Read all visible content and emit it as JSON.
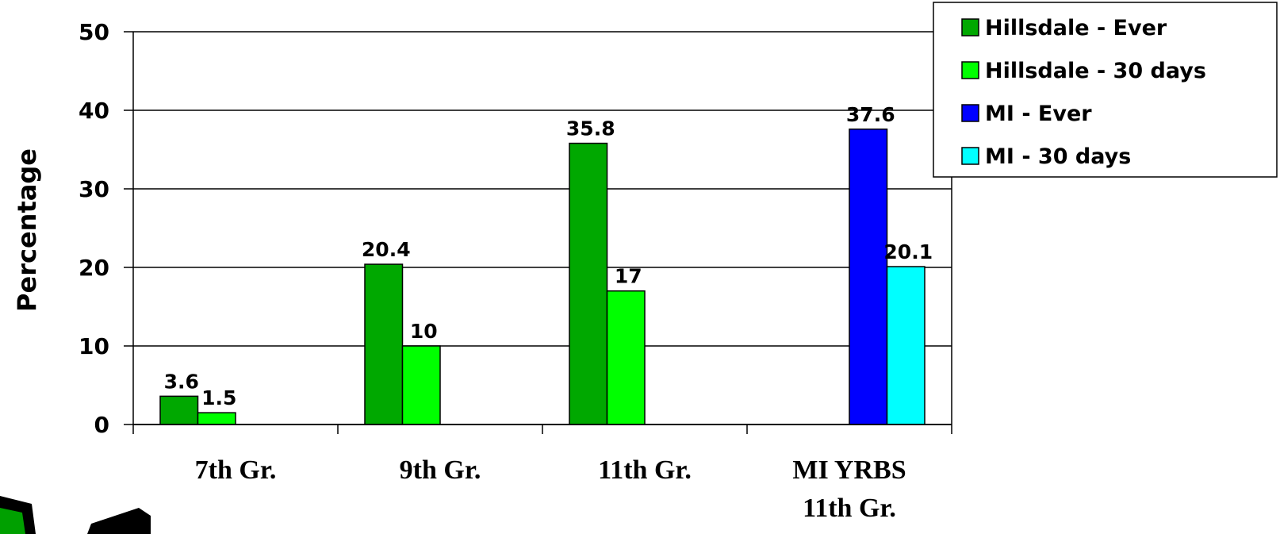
{
  "chart_data": {
    "type": "bar",
    "title": "",
    "xlabel": "",
    "ylabel": "Percentage",
    "ylim": [
      0,
      50
    ],
    "yticks": [
      "0",
      "10",
      "20",
      "30",
      "40",
      "50"
    ],
    "grid": "horizontal",
    "legend_position": "top-right",
    "categories": [
      {
        "lines": [
          "7th Gr."
        ]
      },
      {
        "lines": [
          "9th Gr."
        ]
      },
      {
        "lines": [
          "11th Gr."
        ]
      },
      {
        "lines": [
          "MI YRBS",
          "11th Gr."
        ]
      }
    ],
    "series": [
      {
        "name": "Hillsdale - Ever",
        "color": "#00a800",
        "values": [
          3.6,
          20.4,
          35.8,
          null
        ],
        "labels": [
          "3.6",
          "20.4",
          "35.8",
          ""
        ]
      },
      {
        "name": "Hillsdale - 30 days",
        "color": "#00ff00",
        "values": [
          1.5,
          10,
          17,
          null
        ],
        "labels": [
          "1.5",
          "10",
          "17",
          ""
        ]
      },
      {
        "name": "MI  - Ever",
        "color": "#0000ff",
        "values": [
          null,
          null,
          null,
          37.6
        ],
        "labels": [
          "",
          "",
          "",
          "37.6"
        ]
      },
      {
        "name": "MI  - 30 days",
        "color": "#00ffff",
        "values": [
          null,
          null,
          null,
          20.1
        ],
        "labels": [
          "",
          "",
          "",
          "20.1"
        ]
      }
    ]
  }
}
